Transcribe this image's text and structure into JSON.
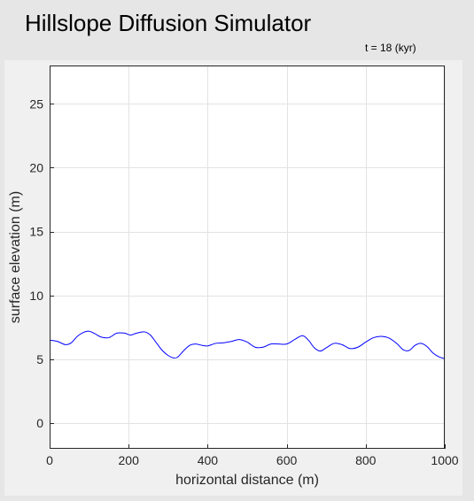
{
  "app": {
    "title": "Hillslope Diffusion Simulator",
    "time_readout": "t = 18 (kyr)"
  },
  "chart_data": {
    "type": "line",
    "title": "",
    "xlabel": "horizontal distance (m)",
    "ylabel": "surface elevation (m)",
    "xlim": [
      0,
      1000
    ],
    "ylim": [
      -2,
      28
    ],
    "xticks": [
      0,
      200,
      400,
      600,
      800,
      1000
    ],
    "yticks": [
      0,
      5,
      10,
      15,
      20,
      25
    ],
    "grid": true,
    "line_color": "#0000ff",
    "grid_color": "#e3e3e3",
    "series": [
      {
        "x": [
          0,
          20,
          40,
          55,
          70,
          85,
          100,
          115,
          130,
          150,
          170,
          190,
          205,
          220,
          240,
          255,
          270,
          285,
          300,
          315,
          325,
          340,
          355,
          370,
          385,
          400,
          420,
          440,
          460,
          480,
          500,
          520,
          540,
          560,
          580,
          600,
          620,
          640,
          655,
          670,
          685,
          700,
          720,
          740,
          760,
          780,
          800,
          820,
          840,
          860,
          880,
          895,
          910,
          925,
          940,
          955,
          970,
          985,
          1000
        ],
        "y": [
          6.5,
          6.4,
          6.15,
          6.3,
          6.8,
          7.1,
          7.2,
          7.0,
          6.75,
          6.7,
          7.05,
          7.05,
          6.9,
          7.05,
          7.15,
          6.9,
          6.3,
          5.7,
          5.3,
          5.1,
          5.2,
          5.7,
          6.1,
          6.2,
          6.1,
          6.05,
          6.25,
          6.3,
          6.4,
          6.55,
          6.35,
          5.95,
          5.95,
          6.2,
          6.2,
          6.2,
          6.55,
          6.85,
          6.5,
          5.9,
          5.65,
          5.9,
          6.25,
          6.15,
          5.85,
          5.95,
          6.35,
          6.7,
          6.8,
          6.65,
          6.2,
          5.75,
          5.7,
          6.1,
          6.25,
          6.0,
          5.5,
          5.2,
          5.05
        ]
      }
    ]
  }
}
